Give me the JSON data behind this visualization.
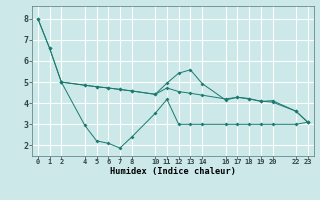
{
  "xlabel": "Humidex (Indice chaleur)",
  "bg_color": "#cce8e8",
  "grid_color": "#ffffff",
  "line_color": "#1a7a6e",
  "xlim": [
    -0.5,
    23.5
  ],
  "ylim": [
    1.5,
    8.6
  ],
  "xticks": [
    0,
    1,
    2,
    4,
    5,
    6,
    7,
    8,
    10,
    11,
    12,
    13,
    14,
    16,
    17,
    18,
    19,
    20,
    22,
    23
  ],
  "yticks": [
    2,
    3,
    4,
    5,
    6,
    7,
    8
  ],
  "line1_x": [
    0,
    1,
    2,
    4,
    5,
    6,
    7,
    8,
    10,
    11,
    12,
    13,
    14,
    16,
    17,
    18,
    19,
    20,
    22,
    23
  ],
  "line1_y": [
    8.0,
    6.6,
    5.0,
    4.85,
    4.78,
    4.72,
    4.65,
    4.58,
    4.42,
    4.95,
    5.42,
    5.58,
    4.93,
    4.15,
    4.28,
    4.22,
    4.08,
    4.12,
    3.62,
    3.1
  ],
  "line2_x": [
    0,
    1,
    2,
    4,
    5,
    6,
    7,
    8,
    10,
    11,
    12,
    13,
    14,
    16,
    17,
    18,
    19,
    20,
    22,
    23
  ],
  "line2_y": [
    8.0,
    6.6,
    5.0,
    2.95,
    2.22,
    2.1,
    1.88,
    2.4,
    3.52,
    4.18,
    3.0,
    3.0,
    3.0,
    3.0,
    3.0,
    3.0,
    3.0,
    3.0,
    3.0,
    3.1
  ],
  "line3_x": [
    2,
    4,
    5,
    6,
    7,
    8,
    10,
    11,
    12,
    13,
    14,
    16,
    17,
    18,
    19,
    20,
    22,
    23
  ],
  "line3_y": [
    5.0,
    4.85,
    4.78,
    4.72,
    4.65,
    4.58,
    4.42,
    4.72,
    4.55,
    4.47,
    4.38,
    4.2,
    4.28,
    4.2,
    4.1,
    4.05,
    3.62,
    3.1
  ]
}
